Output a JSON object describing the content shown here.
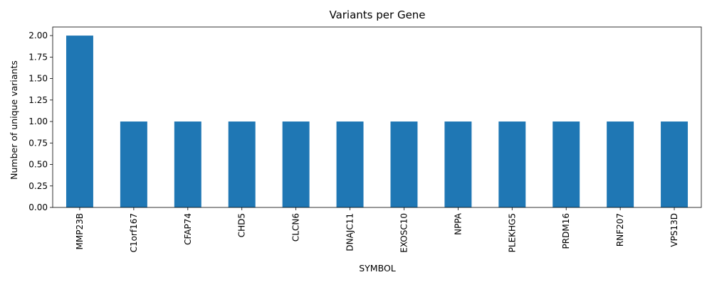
{
  "chart_data": {
    "type": "bar",
    "title": "Variants per Gene",
    "xlabel": "SYMBOL",
    "ylabel": "Number of unique variants",
    "categories": [
      "MMP23B",
      "C1orf167",
      "CFAP74",
      "CHD5",
      "CLCN6",
      "DNAJC11",
      "EXOSC10",
      "NPPA",
      "PLEKHG5",
      "PRDM16",
      "RNF207",
      "VPS13D"
    ],
    "values": [
      2,
      1,
      1,
      1,
      1,
      1,
      1,
      1,
      1,
      1,
      1,
      1
    ],
    "yticks": [
      "0.00",
      "0.25",
      "0.50",
      "0.75",
      "1.00",
      "1.25",
      "1.50",
      "1.75",
      "2.00"
    ],
    "ylim": [
      0,
      2.1
    ],
    "grid": false,
    "legend": "none",
    "bar_color": "#1f77b4"
  }
}
